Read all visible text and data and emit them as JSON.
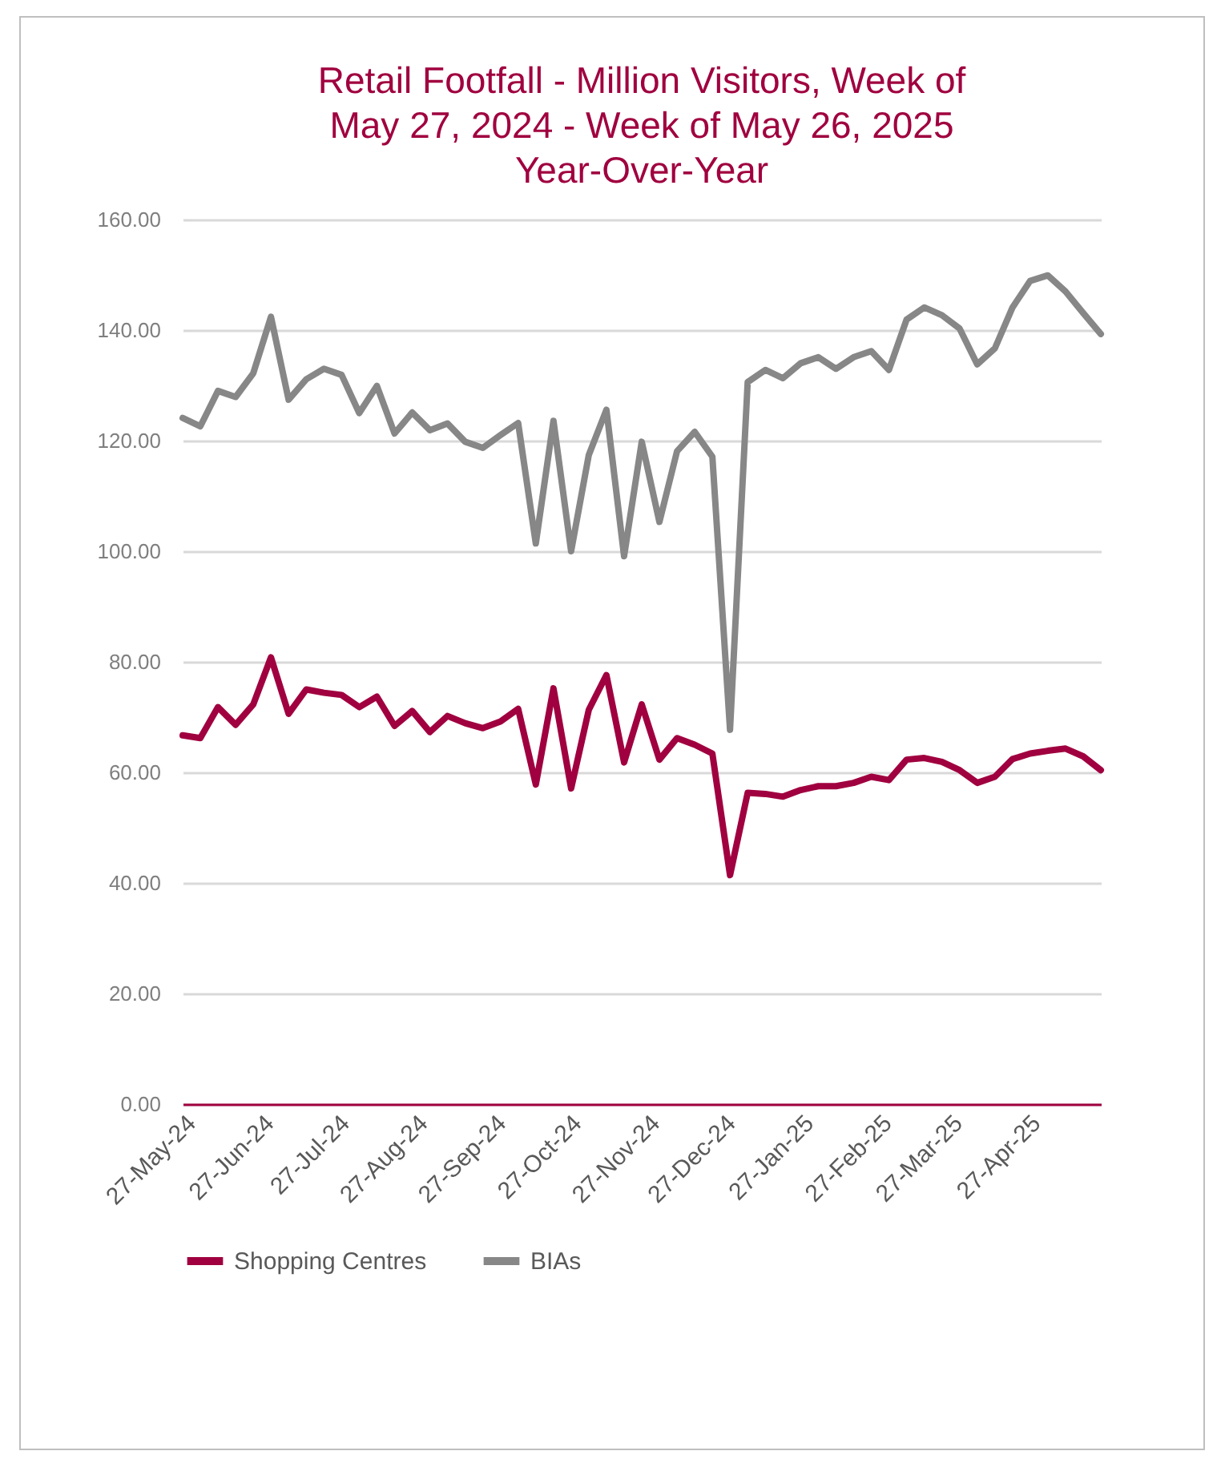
{
  "chart_data": {
    "type": "line",
    "title": "Retail Footfall - Million Visitors, Week of May 27, 2024 - Week of May 26, 2025 Year-Over-Year",
    "x": [
      "2024-05-27",
      "2024-06-03",
      "2024-06-10",
      "2024-06-17",
      "2024-06-24",
      "2024-07-01",
      "2024-07-08",
      "2024-07-15",
      "2024-07-22",
      "2024-07-29",
      "2024-08-05",
      "2024-08-12",
      "2024-08-19",
      "2024-08-26",
      "2024-09-02",
      "2024-09-09",
      "2024-09-16",
      "2024-09-23",
      "2024-09-30",
      "2024-10-07",
      "2024-10-14",
      "2024-10-21",
      "2024-10-28",
      "2024-11-04",
      "2024-11-11",
      "2024-11-18",
      "2024-11-25",
      "2024-12-02",
      "2024-12-09",
      "2024-12-16",
      "2024-12-23",
      "2024-12-30",
      "2025-01-06",
      "2025-01-13",
      "2025-01-20",
      "2025-01-27",
      "2025-02-03",
      "2025-02-10",
      "2025-02-17",
      "2025-02-24",
      "2025-03-03",
      "2025-03-10",
      "2025-03-17",
      "2025-03-24",
      "2025-03-31",
      "2025-04-07",
      "2025-04-14",
      "2025-04-21",
      "2025-04-28",
      "2025-05-05",
      "2025-05-12",
      "2025-05-19",
      "2025-05-26"
    ],
    "series": [
      {
        "name": "Shopping Centres",
        "color": "#a0003f",
        "values": [
          66.7,
          66.2,
          71.8,
          68.6,
          72.3,
          80.8,
          70.6,
          75.0,
          74.4,
          74.0,
          71.8,
          73.7,
          68.4,
          71.1,
          67.3,
          70.2,
          68.9,
          68.0,
          69.2,
          71.5,
          57.8,
          75.2,
          57.1,
          71.3,
          77.6,
          61.8,
          72.3,
          62.3,
          66.2,
          65.0,
          63.4,
          41.4,
          56.3,
          56.1,
          55.6,
          56.8,
          57.5,
          57.5,
          58.1,
          59.2,
          58.6,
          62.3,
          62.6,
          61.9,
          60.4,
          58.1,
          59.2,
          62.4,
          63.4,
          63.9,
          64.3,
          62.9,
          60.4
        ]
      },
      {
        "name": "BIAs",
        "color": "#878787",
        "values": [
          124.1,
          122.6,
          129.0,
          127.9,
          132.2,
          142.4,
          127.4,
          131.1,
          133.0,
          131.9,
          125.0,
          129.9,
          121.3,
          125.1,
          121.9,
          123.1,
          119.8,
          118.7,
          121.0,
          123.2,
          101.4,
          123.6,
          100.0,
          117.4,
          125.6,
          99.1,
          119.8,
          105.3,
          118.1,
          121.6,
          117.1,
          67.7,
          130.6,
          132.8,
          131.3,
          134.0,
          135.1,
          133.0,
          135.1,
          136.2,
          132.8,
          141.9,
          144.1,
          142.7,
          140.3,
          133.8,
          136.7,
          144.1,
          148.9,
          149.9,
          147.0,
          143.1,
          139.3
        ]
      }
    ],
    "xlim": [
      "2024-05-27",
      "2025-05-26"
    ],
    "xticks": [
      {
        "value": "2024-05-27",
        "label": "27-May-24"
      },
      {
        "value": "2024-06-27",
        "label": "27-Jun-24"
      },
      {
        "value": "2024-07-27",
        "label": "27-Jul-24"
      },
      {
        "value": "2024-08-27",
        "label": "27-Aug-24"
      },
      {
        "value": "2024-09-27",
        "label": "27-Sep-24"
      },
      {
        "value": "2024-10-27",
        "label": "27-Oct-24"
      },
      {
        "value": "2024-11-27",
        "label": "27-Nov-24"
      },
      {
        "value": "2024-12-27",
        "label": "27-Dec-24"
      },
      {
        "value": "2025-01-27",
        "label": "27-Jan-25"
      },
      {
        "value": "2025-02-27",
        "label": "27-Feb-25"
      },
      {
        "value": "2025-03-27",
        "label": "27-Mar-25"
      },
      {
        "value": "2025-04-27",
        "label": "27-Apr-25"
      }
    ],
    "ylim": [
      0,
      160
    ],
    "yticks": [
      {
        "value": 0,
        "label": "0.00"
      },
      {
        "value": 20,
        "label": "20.00"
      },
      {
        "value": 40,
        "label": "40.00"
      },
      {
        "value": 60,
        "label": "60.00"
      },
      {
        "value": 80,
        "label": "80.00"
      },
      {
        "value": 100,
        "label": "100.00"
      },
      {
        "value": 120,
        "label": "120.00"
      },
      {
        "value": 140,
        "label": "140.00"
      },
      {
        "value": 160,
        "label": "160.00"
      }
    ],
    "grid": "y",
    "legend": "bottom",
    "marker": "none",
    "line_style": "solid"
  }
}
